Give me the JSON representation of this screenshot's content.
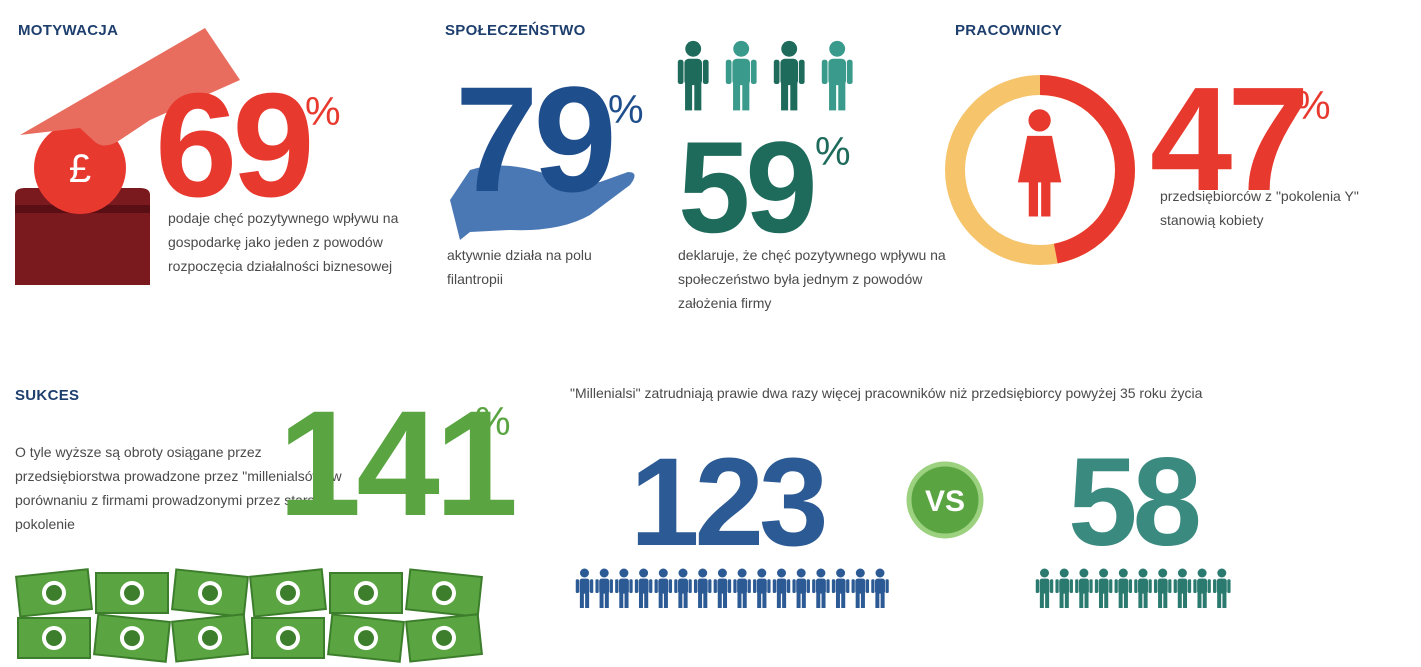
{
  "motivation": {
    "title": "MOTYWACJA",
    "stat": {
      "value": 69,
      "unit": "%"
    },
    "text": "podaje chęć pozytywnego wpływu na gospodarkę jako jeden z powodów rozpoczęcia działalności biznesowej"
  },
  "society": {
    "title": "SPOŁECZEŃSTWO",
    "stats": [
      {
        "value": 79,
        "unit": "%",
        "text": "aktywnie działa na polu filantropii"
      },
      {
        "value": 59,
        "unit": "%",
        "text": "deklaruje, że chęć pozytywnego wpływu na społeczeństwo była jednym z powodów założenia firmy"
      }
    ]
  },
  "employees": {
    "title": "PRACOWNICY",
    "stat": {
      "value": 47,
      "unit": "%"
    },
    "text": "przedsiębiorców z \"pokolenia Y\" stanowią kobiety"
  },
  "success": {
    "title": "SUKCES",
    "stat": {
      "value": 141,
      "unit": "%"
    },
    "text": "O tyle wyższe są obroty osiągane przez przedsiębiorstwa prowadzone przez \"millenialsów\" w porównaniu z firmami prowadzonymi przez starsze pokolenie"
  },
  "employment": {
    "text": "\"Millenialsi\" zatrudniają prawie dwa razy więcej pracowników niż przedsiębiorcy powyżej 35 roku życia",
    "left": {
      "value": 123
    },
    "vs": "VS",
    "right": {
      "value": 58
    }
  }
}
